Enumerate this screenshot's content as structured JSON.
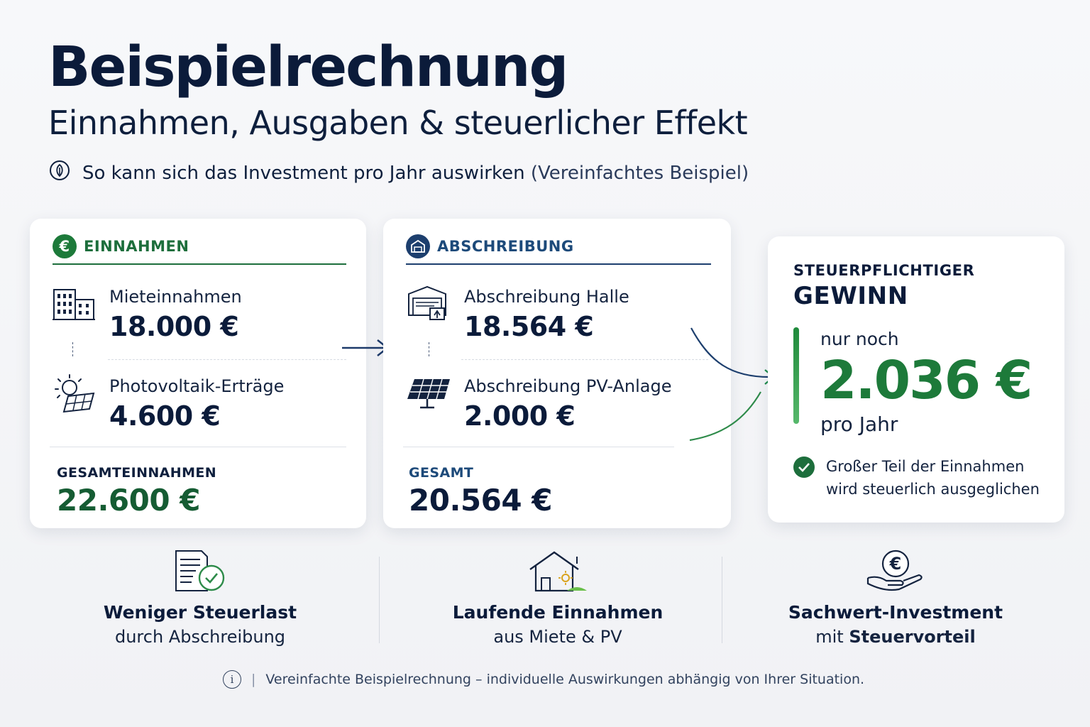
{
  "header": {
    "title": "Beispielrechnung",
    "subtitle": "Einnahmen, Ausgaben & steuerlicher Effekt",
    "intro_main": "So kann sich das Investment pro Jahr auswirken",
    "intro_note": "(Vereinfachtes Beispiel)"
  },
  "income": {
    "heading": "EINNAHMEN",
    "badge": "€",
    "items": [
      {
        "label": "Mieteinnahmen",
        "value": "18.000 €",
        "icon": "building-icon"
      },
      {
        "label": "Photovoltaik-Erträge",
        "value": "4.600 €",
        "icon": "solar-panel-sun-icon"
      }
    ],
    "total_label": "GESAMTEINNAHMEN",
    "total_value": "22.600 €"
  },
  "depreciation": {
    "heading": "ABSCHREIBUNG",
    "items": [
      {
        "label": "Abschreibung Halle",
        "value": "18.564 €",
        "icon": "hall-icon"
      },
      {
        "label": "Abschreibung PV-Anlage",
        "value": "2.000 €",
        "icon": "solar-panel-icon"
      }
    ],
    "total_label": "GESAMT",
    "total_value": "20.564 €"
  },
  "result": {
    "title_line1": "STEUERPFLICHTIGER",
    "title_line2": "GEWINN",
    "pre": "nur noch",
    "value": "2.036 €",
    "post": "pro Jahr",
    "note_line1": "Großer Teil der Einnahmen",
    "note_line2": "wird steuerlich ausgeglichen"
  },
  "benefits": [
    {
      "title": "Weniger Steuerlast",
      "sub": "durch Abschreibung",
      "icon": "document-check-icon"
    },
    {
      "title": "Laufende Einnahmen",
      "sub": "aus Miete & PV",
      "icon": "house-solar-icon"
    },
    {
      "title": "Sachwert-Investment",
      "sub_plain": "mit",
      "sub_bold": "Steuervorteil",
      "icon": "hand-euro-icon"
    }
  ],
  "footnote": {
    "text": "Vereinfachte Beispielrechnung – individuelle Auswirkungen abhängig von Ihrer Situation.",
    "separator": "|",
    "info_glyph": "i"
  },
  "colors": {
    "green": "#1d6e3c",
    "navy": "#0b1b3a",
    "blue": "#1d4a7a",
    "result_green": "#1d7a3a"
  }
}
